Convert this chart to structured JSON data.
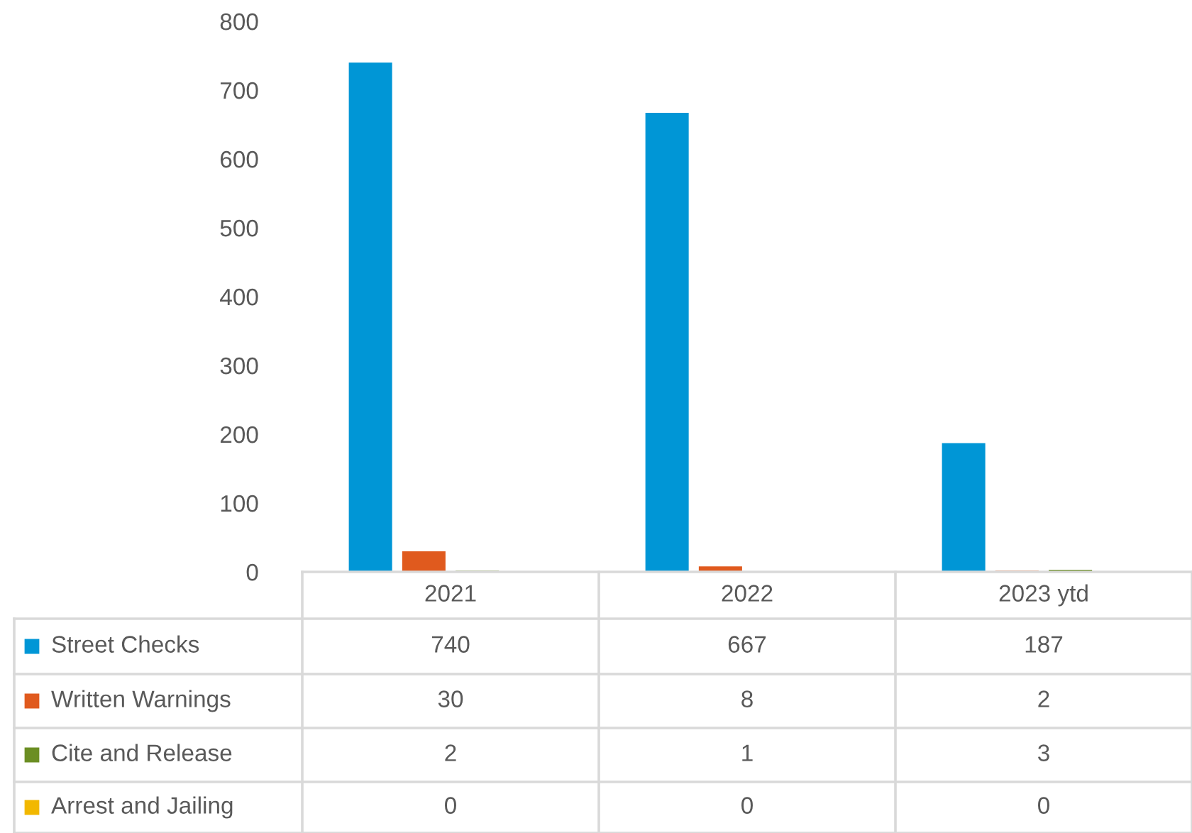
{
  "chart_data": {
    "type": "bar",
    "categories": [
      "2021",
      "2022",
      "2023 ytd"
    ],
    "series": [
      {
        "name": "Street Checks",
        "color": "#0096d6",
        "values": [
          740,
          667,
          187
        ]
      },
      {
        "name": "Written Warnings",
        "color": "#e05a1e",
        "values": [
          30,
          8,
          2
        ]
      },
      {
        "name": "Cite and Release",
        "color": "#6b8e23",
        "values": [
          2,
          1,
          3
        ]
      },
      {
        "name": "Arrest and Jailing",
        "color": "#f2b800",
        "values": [
          0,
          0,
          0
        ]
      }
    ],
    "ylim": [
      0,
      800
    ],
    "yticks": [
      0,
      100,
      200,
      300,
      400,
      500,
      600,
      700,
      800
    ],
    "grid": false,
    "legend": "bottom",
    "data_labels": true
  }
}
